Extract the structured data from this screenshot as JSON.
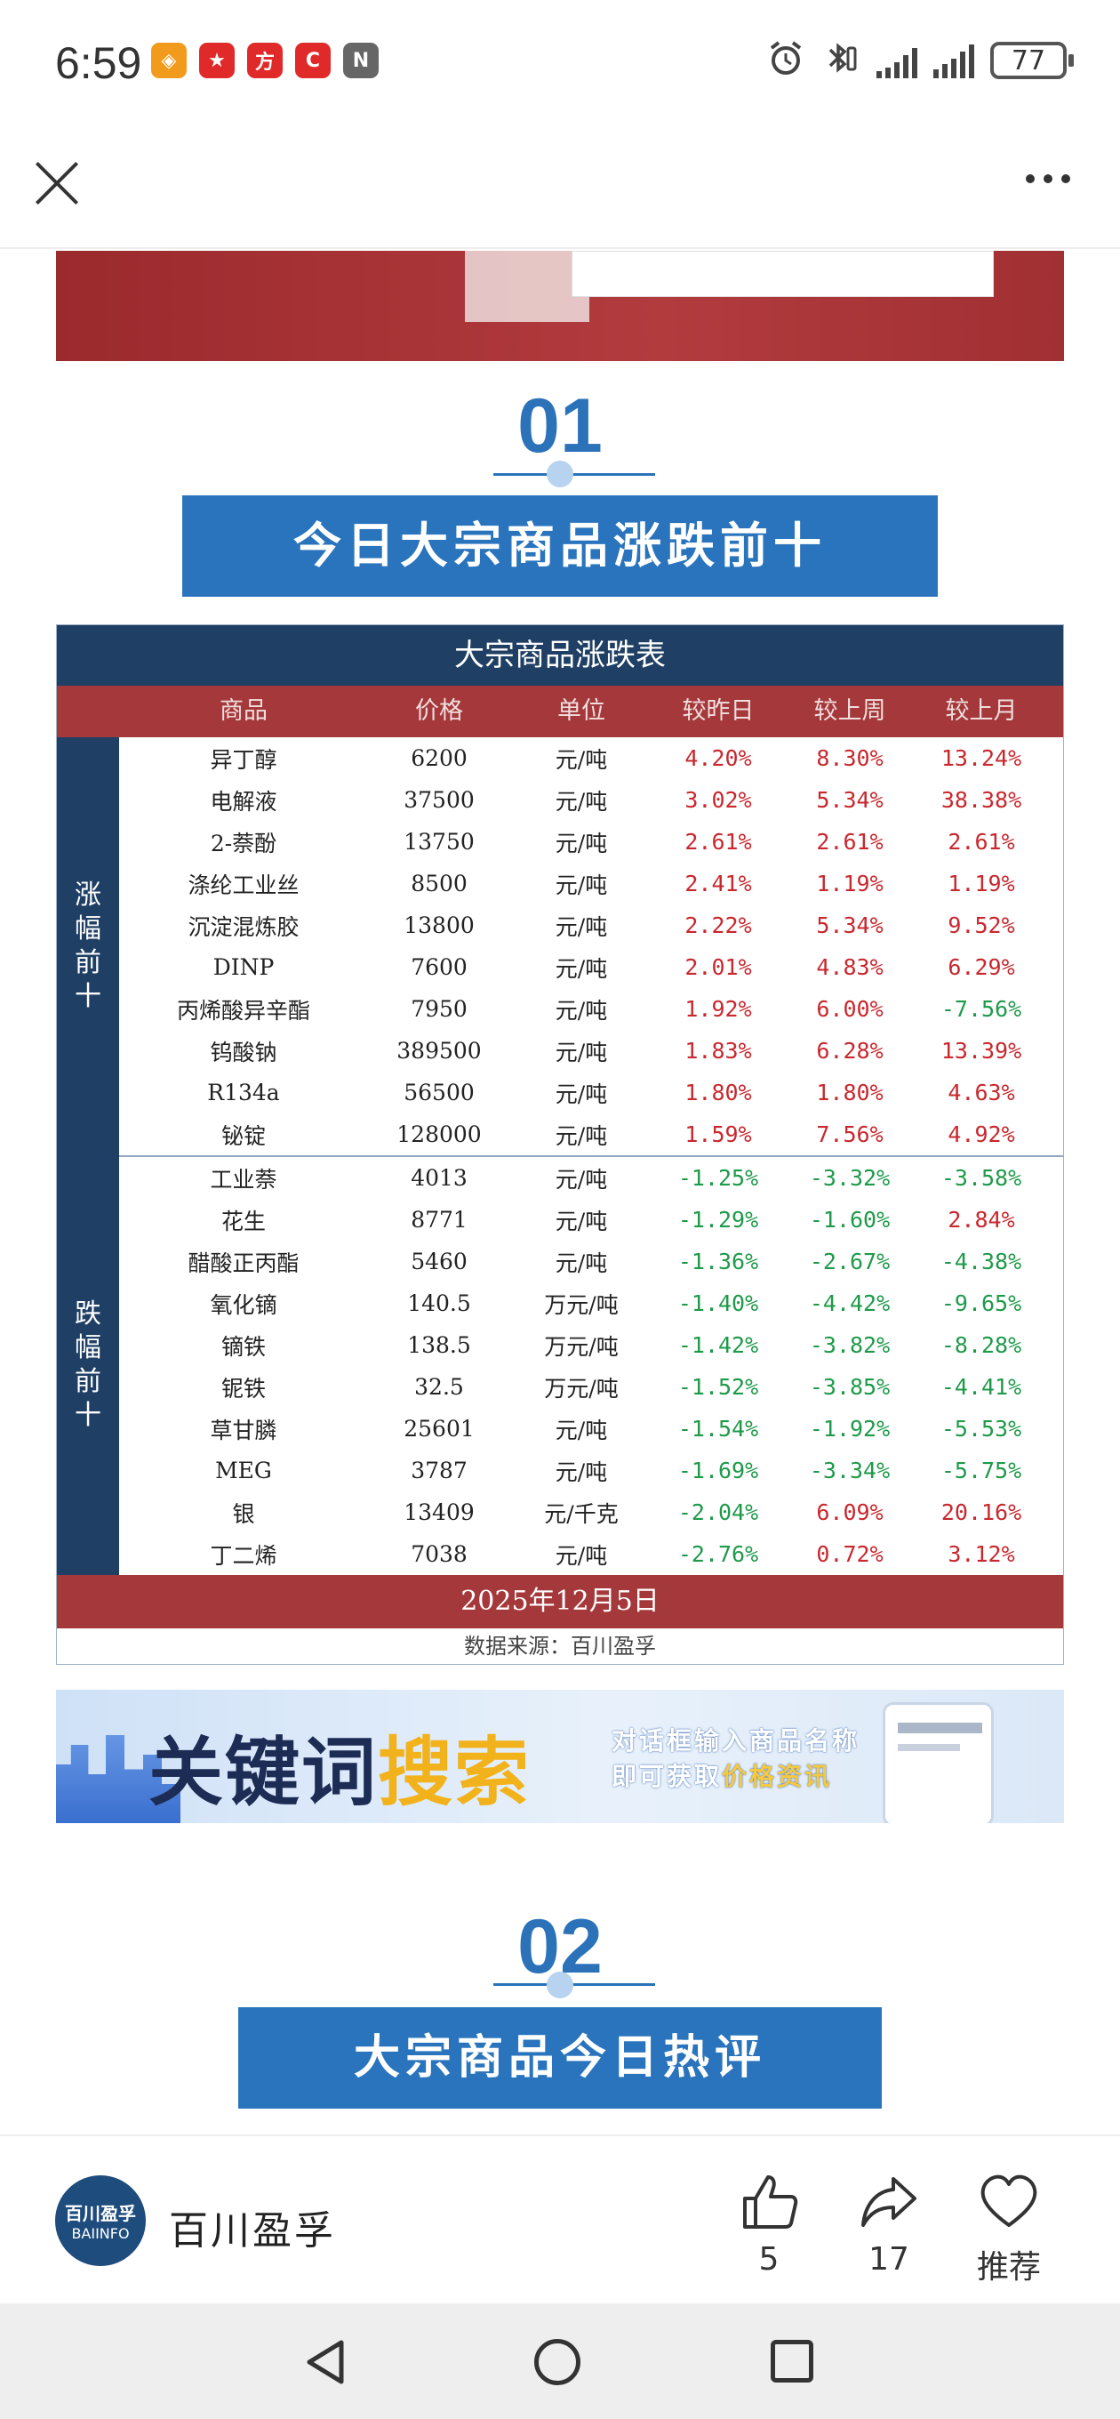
{
  "status_bar": {
    "time": "6:59",
    "battery": "77",
    "apps": [
      {
        "icon": "orange-app-icon",
        "glyph": "◈",
        "color": "#f29a1c"
      },
      {
        "icon": "red-app-icon",
        "glyph": "★",
        "color": "#e02a2a"
      },
      {
        "icon": "finance-app-icon",
        "glyph": "方",
        "color": "#e02a2a"
      },
      {
        "icon": "c-app-icon",
        "glyph": "C",
        "color": "#e02a2a"
      },
      {
        "icon": "nfc-icon",
        "glyph": "N",
        "color": "#666666"
      }
    ]
  },
  "section1": {
    "number": "01",
    "title": "今日大宗商品涨跌前十"
  },
  "table": {
    "title": "大宗商品涨跌表",
    "headers": [
      "商品",
      "价格",
      "单位",
      "较昨日",
      "较上周",
      "较上月"
    ],
    "gainers_label": "涨幅前十",
    "losers_label": "跌幅前十",
    "gainers": [
      {
        "name": "异丁醇",
        "price": "6200",
        "unit": "元/吨",
        "day": "4.20%",
        "week": "8.30%",
        "month": "13.24%",
        "dayDir": "up",
        "weekDir": "up",
        "monthDir": "up"
      },
      {
        "name": "电解液",
        "price": "37500",
        "unit": "元/吨",
        "day": "3.02%",
        "week": "5.34%",
        "month": "38.38%",
        "dayDir": "up",
        "weekDir": "up",
        "monthDir": "up"
      },
      {
        "name": "2-萘酚",
        "price": "13750",
        "unit": "元/吨",
        "day": "2.61%",
        "week": "2.61%",
        "month": "2.61%",
        "dayDir": "up",
        "weekDir": "up",
        "monthDir": "up"
      },
      {
        "name": "涤纶工业丝",
        "price": "8500",
        "unit": "元/吨",
        "day": "2.41%",
        "week": "1.19%",
        "month": "1.19%",
        "dayDir": "up",
        "weekDir": "up",
        "monthDir": "up"
      },
      {
        "name": "沉淀混炼胶",
        "price": "13800",
        "unit": "元/吨",
        "day": "2.22%",
        "week": "5.34%",
        "month": "9.52%",
        "dayDir": "up",
        "weekDir": "up",
        "monthDir": "up"
      },
      {
        "name": "DINP",
        "price": "7600",
        "unit": "元/吨",
        "day": "2.01%",
        "week": "4.83%",
        "month": "6.29%",
        "dayDir": "up",
        "weekDir": "up",
        "monthDir": "up"
      },
      {
        "name": "丙烯酸异辛酯",
        "price": "7950",
        "unit": "元/吨",
        "day": "1.92%",
        "week": "6.00%",
        "month": "-7.56%",
        "dayDir": "up",
        "weekDir": "up",
        "monthDir": "down"
      },
      {
        "name": "钨酸钠",
        "price": "389500",
        "unit": "元/吨",
        "day": "1.83%",
        "week": "6.28%",
        "month": "13.39%",
        "dayDir": "up",
        "weekDir": "up",
        "monthDir": "up"
      },
      {
        "name": "R134a",
        "price": "56500",
        "unit": "元/吨",
        "day": "1.80%",
        "week": "1.80%",
        "month": "4.63%",
        "dayDir": "up",
        "weekDir": "up",
        "monthDir": "up"
      },
      {
        "name": "铋锭",
        "price": "128000",
        "unit": "元/吨",
        "day": "1.59%",
        "week": "7.56%",
        "month": "4.92%",
        "dayDir": "up",
        "weekDir": "up",
        "monthDir": "up"
      }
    ],
    "losers": [
      {
        "name": "工业萘",
        "price": "4013",
        "unit": "元/吨",
        "day": "-1.25%",
        "week": "-3.32%",
        "month": "-3.58%",
        "dayDir": "down",
        "weekDir": "down",
        "monthDir": "down"
      },
      {
        "name": "花生",
        "price": "8771",
        "unit": "元/吨",
        "day": "-1.29%",
        "week": "-1.60%",
        "month": "2.84%",
        "dayDir": "down",
        "weekDir": "down",
        "monthDir": "up"
      },
      {
        "name": "醋酸正丙酯",
        "price": "5460",
        "unit": "元/吨",
        "day": "-1.36%",
        "week": "-2.67%",
        "month": "-4.38%",
        "dayDir": "down",
        "weekDir": "down",
        "monthDir": "down"
      },
      {
        "name": "氧化镝",
        "price": "140.5",
        "unit": "万元/吨",
        "day": "-1.40%",
        "week": "-4.42%",
        "month": "-9.65%",
        "dayDir": "down",
        "weekDir": "down",
        "monthDir": "down"
      },
      {
        "name": "镝铁",
        "price": "138.5",
        "unit": "万元/吨",
        "day": "-1.42%",
        "week": "-3.82%",
        "month": "-8.28%",
        "dayDir": "down",
        "weekDir": "down",
        "monthDir": "down"
      },
      {
        "name": "铌铁",
        "price": "32.5",
        "unit": "万元/吨",
        "day": "-1.52%",
        "week": "-3.85%",
        "month": "-4.41%",
        "dayDir": "down",
        "weekDir": "down",
        "monthDir": "down"
      },
      {
        "name": "草甘膦",
        "price": "25601",
        "unit": "元/吨",
        "day": "-1.54%",
        "week": "-1.92%",
        "month": "-5.53%",
        "dayDir": "down",
        "weekDir": "down",
        "monthDir": "down"
      },
      {
        "name": "MEG",
        "price": "3787",
        "unit": "元/吨",
        "day": "-1.69%",
        "week": "-3.34%",
        "month": "-5.75%",
        "dayDir": "down",
        "weekDir": "down",
        "monthDir": "down"
      },
      {
        "name": "银",
        "price": "13409",
        "unit": "元/千克",
        "day": "-2.04%",
        "week": "6.09%",
        "month": "20.16%",
        "dayDir": "down",
        "weekDir": "up",
        "monthDir": "up"
      },
      {
        "name": "丁二烯",
        "price": "7038",
        "unit": "元/吨",
        "day": "-2.76%",
        "week": "0.72%",
        "month": "3.12%",
        "dayDir": "down",
        "weekDir": "up",
        "monthDir": "up"
      }
    ],
    "date": "2025年12月5日",
    "source": "数据来源：百川盈孚"
  },
  "search_banner": {
    "title_part1": "关键词",
    "title_part2": "搜索",
    "subtitle_line1": "对话框输入商品名称",
    "subtitle_line2_prefix": "即可获取",
    "subtitle_line2_highlight": "价格资讯"
  },
  "section2": {
    "number": "02",
    "title": "大宗商品今日热评"
  },
  "author": {
    "avatar_line1": "百川盈孚",
    "avatar_line2": "BAIINFO",
    "name": "百川盈孚"
  },
  "actions": {
    "like_count": "5",
    "share_count": "17",
    "recommend_label": "推荐"
  }
}
